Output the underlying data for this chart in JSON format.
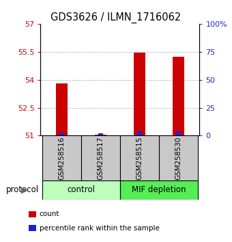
{
  "title": "GDS3626 / ILMN_1716062",
  "samples": [
    "GSM258516",
    "GSM258517",
    "GSM258515",
    "GSM258530"
  ],
  "red_bar_tops": [
    53.8,
    51.05,
    55.45,
    55.25
  ],
  "blue_bar_tops": [
    51.15,
    51.13,
    51.22,
    51.22
  ],
  "bar_bottom": 51.0,
  "red_color": "#cc0000",
  "blue_color": "#2222cc",
  "left_ylim": [
    51,
    57
  ],
  "left_yticks": [
    51,
    52.5,
    54,
    55.5,
    57
  ],
  "right_yticks": [
    0,
    25,
    50,
    75,
    100
  ],
  "right_yticklabels": [
    "0",
    "25",
    "50",
    "75",
    "100%"
  ],
  "group_labels": [
    "control",
    "MIF depletion"
  ],
  "group_colors": [
    "#bbffbb",
    "#55ee55"
  ],
  "protocol_label": "protocol",
  "legend_items": [
    {
      "color": "#cc0000",
      "label": "count"
    },
    {
      "color": "#2222cc",
      "label": "percentile rank within the sample"
    }
  ],
  "tick_label_color_left": "#cc0000",
  "tick_label_color_right": "#2222cc",
  "bar_width": 0.3,
  "blue_bar_width": 0.12
}
